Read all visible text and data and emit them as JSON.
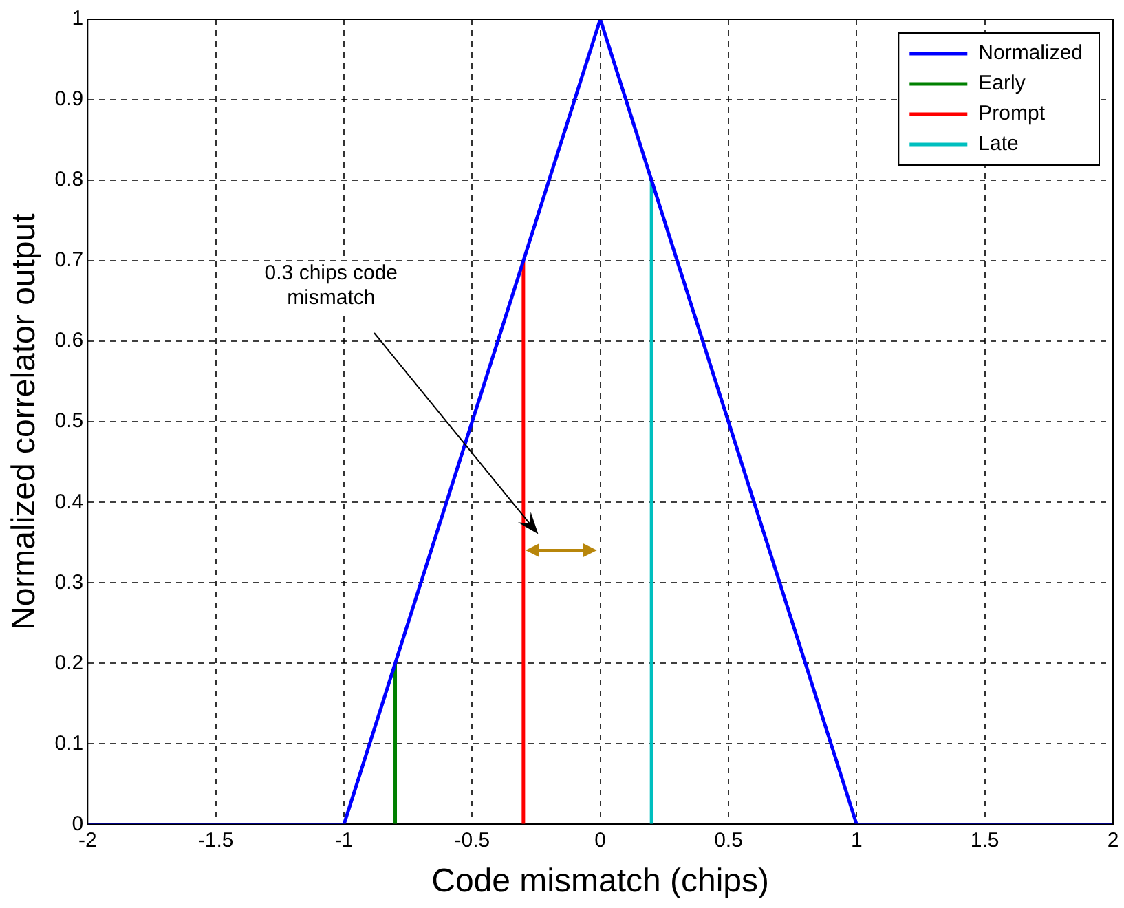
{
  "chart_data": {
    "type": "line",
    "xlabel": "Code mismatch (chips)",
    "ylabel": "Normalized correlator output",
    "series": [
      {
        "name": "Normalized",
        "color": "#0000ff",
        "x": [
          -2,
          -1,
          0,
          1,
          2
        ],
        "values": [
          0,
          0,
          1,
          0,
          0
        ]
      },
      {
        "name": "Early",
        "color": "#008000",
        "x": [
          -0.8,
          -0.8
        ],
        "values": [
          0,
          0.2
        ]
      },
      {
        "name": "Prompt",
        "color": "#ff0000",
        "x": [
          -0.3,
          -0.3
        ],
        "values": [
          0,
          0.7
        ]
      },
      {
        "name": "Late",
        "color": "#00bfbf",
        "x": [
          0.2,
          0.2
        ],
        "values": [
          0,
          0.8
        ]
      }
    ],
    "xlim": [
      -2,
      2
    ],
    "xticks": [
      -2,
      -1.5,
      -1,
      -0.5,
      0,
      0.5,
      1,
      1.5,
      2
    ],
    "ylim": [
      0,
      1
    ],
    "yticks": [
      0,
      0.1,
      0.2,
      0.3,
      0.4,
      0.5,
      0.6,
      0.7,
      0.8,
      0.9,
      1
    ],
    "grid": true,
    "legend": "top right",
    "marker": "none",
    "line_style": "solid",
    "annotations": [
      "0.3 chips code mismatch"
    ]
  }
}
